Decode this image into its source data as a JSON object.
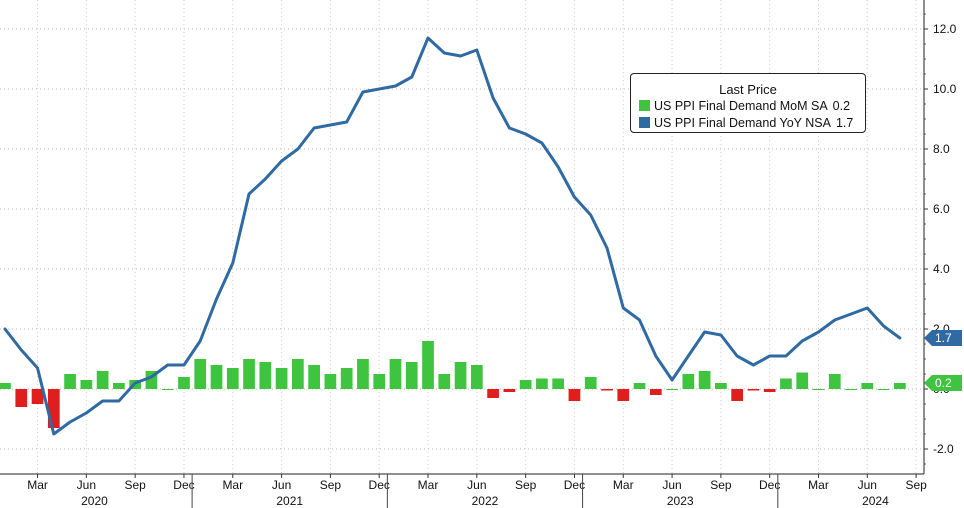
{
  "chart_data": {
    "type": "bar+line",
    "legend": {
      "title": "Last Price",
      "placement": "top-right",
      "entries": [
        {
          "name": "US PPI Final Demand MoM SA",
          "last": "0.2",
          "color": "#3ec43e",
          "kind": "bar"
        },
        {
          "name": "US PPI Final Demand YoY NSA",
          "last": "1.7",
          "color": "#2f6aa3",
          "kind": "line"
        }
      ]
    },
    "months": [
      "2020-01",
      "2020-02",
      "2020-03",
      "2020-04",
      "2020-05",
      "2020-06",
      "2020-07",
      "2020-08",
      "2020-09",
      "2020-10",
      "2020-11",
      "2020-12",
      "2021-01",
      "2021-02",
      "2021-03",
      "2021-04",
      "2021-05",
      "2021-06",
      "2021-07",
      "2021-08",
      "2021-09",
      "2021-10",
      "2021-11",
      "2021-12",
      "2022-01",
      "2022-02",
      "2022-03",
      "2022-04",
      "2022-05",
      "2022-06",
      "2022-07",
      "2022-08",
      "2022-09",
      "2022-10",
      "2022-11",
      "2022-12",
      "2023-01",
      "2023-02",
      "2023-03",
      "2023-04",
      "2023-05",
      "2023-06",
      "2023-07",
      "2023-08",
      "2023-09",
      "2023-10",
      "2023-11",
      "2023-12",
      "2024-01",
      "2024-02",
      "2024-03",
      "2024-04",
      "2024-05",
      "2024-06",
      "2024-07",
      "2024-08"
    ],
    "series": [
      {
        "name": "US PPI Final Demand MoM SA",
        "kind": "bar",
        "values": [
          0.2,
          -0.6,
          -0.5,
          -1.3,
          0.5,
          0.3,
          0.6,
          0.2,
          0.3,
          0.6,
          0.0,
          0.4,
          1.0,
          0.8,
          0.7,
          1.0,
          0.9,
          0.7,
          1.0,
          0.8,
          0.5,
          0.7,
          1.0,
          0.5,
          1.0,
          0.9,
          1.6,
          0.5,
          0.9,
          0.8,
          -0.3,
          -0.1,
          0.3,
          0.35,
          0.35,
          -0.4,
          0.4,
          -0.05,
          -0.4,
          0.2,
          -0.2,
          0.0,
          0.5,
          0.6,
          0.2,
          -0.4,
          -0.05,
          -0.1,
          0.35,
          0.55,
          0.0,
          0.5,
          0.0,
          0.2,
          0.0,
          0.2
        ]
      },
      {
        "name": "US PPI Final Demand YoY NSA",
        "kind": "line",
        "values": [
          2.0,
          1.3,
          0.7,
          -1.5,
          -1.1,
          -0.8,
          -0.4,
          -0.4,
          0.2,
          0.4,
          0.8,
          0.8,
          1.6,
          3.0,
          4.2,
          6.5,
          7.0,
          7.6,
          8.0,
          8.7,
          8.8,
          8.9,
          9.9,
          10.0,
          10.1,
          10.4,
          11.7,
          11.2,
          11.1,
          11.3,
          9.7,
          8.7,
          8.5,
          8.2,
          7.4,
          6.4,
          5.8,
          4.7,
          2.7,
          2.3,
          1.1,
          0.3,
          1.1,
          1.9,
          1.8,
          1.1,
          0.8,
          1.1,
          1.1,
          1.6,
          1.9,
          2.3,
          2.5,
          2.7,
          2.1,
          1.7
        ]
      }
    ],
    "y_axis": {
      "side": "right",
      "min": -2.6,
      "max": 13.0,
      "ticks": [
        "-2.0",
        "0.0",
        "2.0",
        "4.0",
        "6.0",
        "8.0",
        "10.0",
        "12.0"
      ],
      "tick_values": [
        -2,
        0,
        2,
        4,
        6,
        8,
        10,
        12
      ],
      "last_value_flags": [
        {
          "value": 1.7,
          "label": "1.7",
          "color": "#2f6aa3"
        },
        {
          "value": 0.2,
          "label": "0.2",
          "color": "#3ec43e"
        }
      ]
    },
    "x_axis": {
      "month_ticks": [
        {
          "month": "2020-03",
          "label": "Mar"
        },
        {
          "month": "2020-06",
          "label": "Jun"
        },
        {
          "month": "2020-09",
          "label": "Sep"
        },
        {
          "month": "2020-12",
          "label": "Dec"
        },
        {
          "month": "2021-03",
          "label": "Mar"
        },
        {
          "month": "2021-06",
          "label": "Jun"
        },
        {
          "month": "2021-09",
          "label": "Sep"
        },
        {
          "month": "2021-12",
          "label": "Dec"
        },
        {
          "month": "2022-03",
          "label": "Mar"
        },
        {
          "month": "2022-06",
          "label": "Jun"
        },
        {
          "month": "2022-09",
          "label": "Sep"
        },
        {
          "month": "2022-12",
          "label": "Dec"
        },
        {
          "month": "2023-03",
          "label": "Mar"
        },
        {
          "month": "2023-06",
          "label": "Jun"
        },
        {
          "month": "2023-09",
          "label": "Sep"
        },
        {
          "month": "2023-12",
          "label": "Dec"
        },
        {
          "month": "2024-03",
          "label": "Mar"
        },
        {
          "month": "2024-06",
          "label": "Jun"
        },
        {
          "month": "2024-09",
          "label": "Sep"
        }
      ],
      "years": [
        "2020",
        "2021",
        "2022",
        "2023",
        "2024"
      ]
    },
    "grid": "horizontal dotted",
    "colors": {
      "bar_positive": "#3ec43e",
      "bar_negative": "#e01e1e",
      "line": "#2f6aa3"
    }
  }
}
